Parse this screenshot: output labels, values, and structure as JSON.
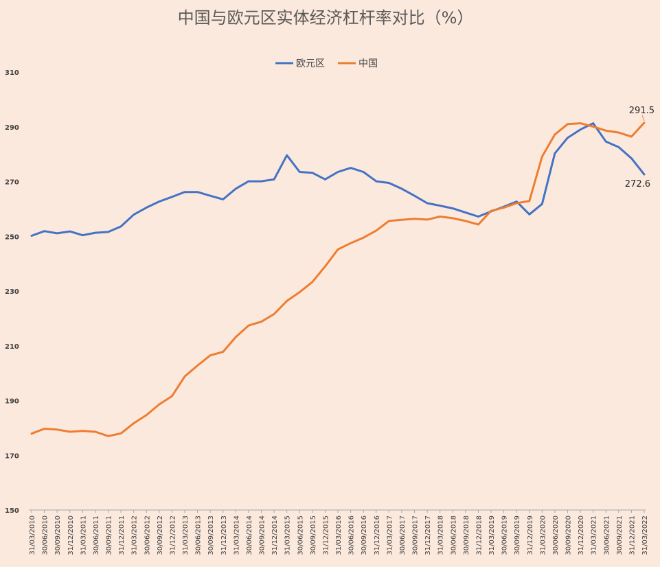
{
  "chart_data": {
    "type": "line",
    "title": "中国与欧元区实体经济杠杆率对比（%）",
    "xlabel": "",
    "ylabel": "",
    "ylim": [
      150,
      310
    ],
    "yticks": [
      150,
      170,
      190,
      210,
      230,
      250,
      270,
      290,
      310
    ],
    "grid": false,
    "legend": "top-center",
    "categories": [
      "31/03/2010",
      "30/06/2010",
      "30/09/2010",
      "31/12/2010",
      "31/03/2011",
      "30/06/2011",
      "30/09/2011",
      "31/12/2011",
      "31/03/2012",
      "30/06/2012",
      "30/09/2012",
      "31/12/2012",
      "31/03/2013",
      "30/06/2013",
      "30/09/2013",
      "31/12/2013",
      "31/03/2014",
      "30/06/2014",
      "30/09/2014",
      "31/12/2014",
      "31/03/2015",
      "30/06/2015",
      "30/09/2015",
      "31/12/2015",
      "31/03/2016",
      "30/06/2016",
      "30/09/2016",
      "31/12/2016",
      "31/03/2017",
      "30/06/2017",
      "30/09/2017",
      "31/12/2017",
      "31/03/2018",
      "30/06/2018",
      "30/09/2018",
      "31/12/2018",
      "31/03/2019",
      "30/06/2019",
      "30/09/2019",
      "31/12/2019",
      "31/03/2020",
      "30/06/2020",
      "30/09/2020",
      "31/12/2020",
      "31/03/2021",
      "30/06/2021",
      "30/09/2021",
      "31/12/2021",
      "31/03/2022"
    ],
    "series": [
      {
        "name": "欧元区",
        "color": "#4472C4",
        "values": [
          250.2,
          251.9,
          251.1,
          251.8,
          250.4,
          251.3,
          251.6,
          253.6,
          257.9,
          260.5,
          262.7,
          264.4,
          266.2,
          266.2,
          264.8,
          263.5,
          267.4,
          270.1,
          270.1,
          270.8,
          279.6,
          273.5,
          273.2,
          270.8,
          273.5,
          275.0,
          273.5,
          270.1,
          269.5,
          267.4,
          264.8,
          262.1,
          261.2,
          260.2,
          258.7,
          257.2,
          259.1,
          260.8,
          262.7,
          258.0,
          261.8,
          280.3,
          286.0,
          289.0,
          291.3,
          284.6,
          282.6,
          278.5,
          272.6
        ],
        "end_label": "272.6"
      },
      {
        "name": "中国",
        "color": "#ED7D31",
        "values": [
          177.9,
          179.7,
          179.4,
          178.6,
          178.9,
          178.6,
          177.0,
          178.0,
          181.7,
          184.7,
          188.6,
          191.6,
          198.8,
          202.8,
          206.5,
          207.8,
          213.2,
          217.4,
          218.8,
          221.6,
          226.4,
          229.6,
          233.3,
          239.0,
          245.2,
          247.5,
          249.5,
          252.1,
          255.6,
          256.0,
          256.4,
          256.1,
          257.2,
          256.6,
          255.6,
          254.3,
          259.3,
          260.5,
          262.1,
          262.9,
          279.1,
          287.2,
          291.0,
          291.3,
          290.1,
          288.6,
          287.9,
          286.4,
          291.5
        ],
        "end_label": "291.5"
      }
    ]
  }
}
